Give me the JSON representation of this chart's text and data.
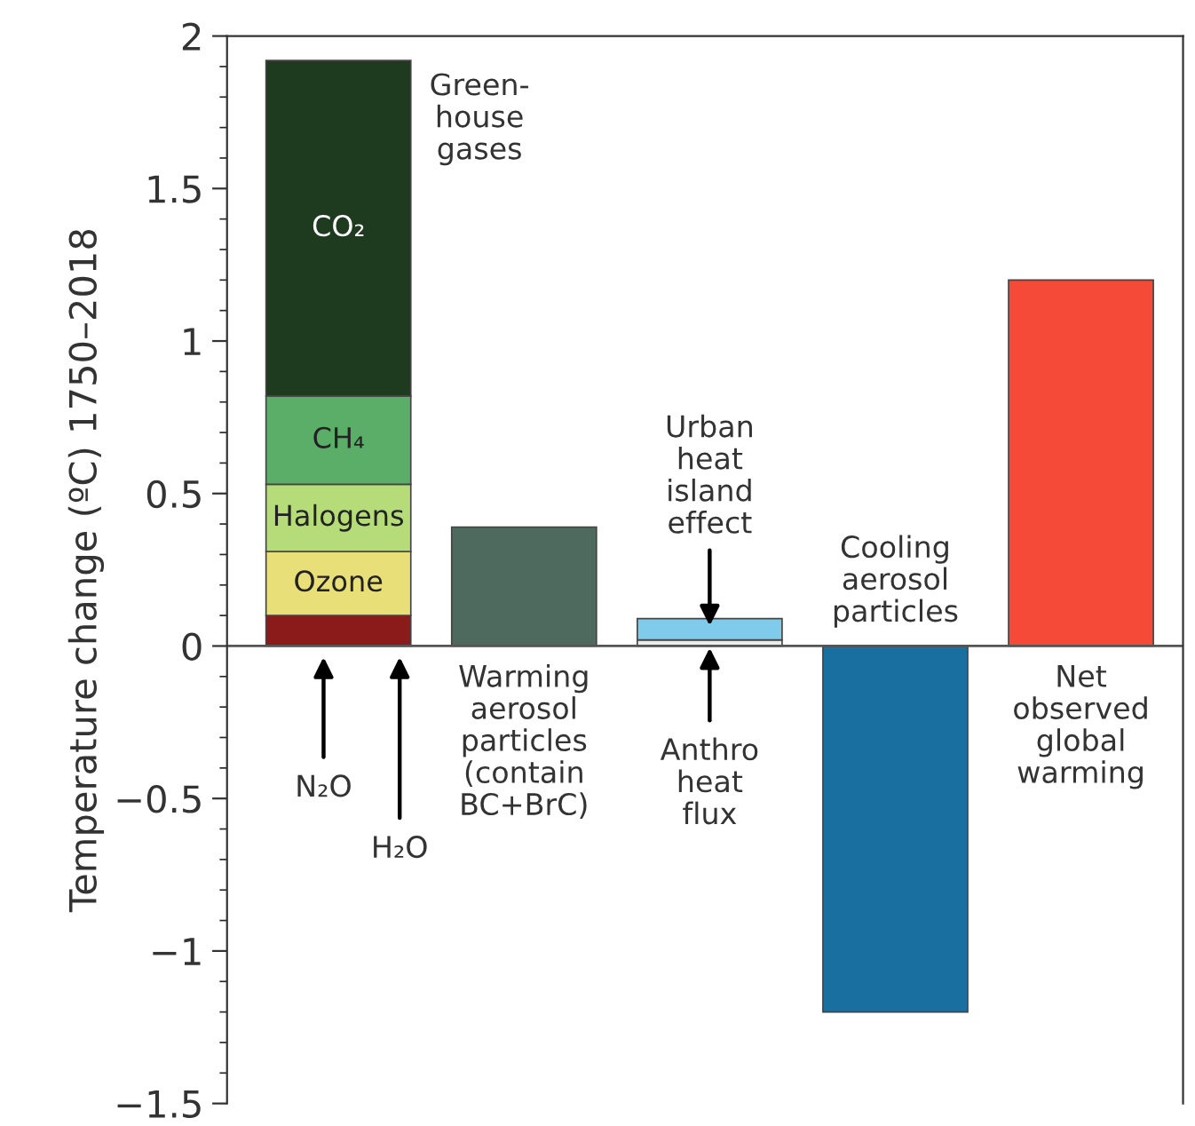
{
  "chart_data": {
    "type": "bar",
    "stacked": true,
    "ylabel": "Temperature change (ºC) 1750–2018",
    "categories": [
      null,
      null,
      null,
      null,
      null
    ],
    "series": [
      {
        "color": "#8b1a1a",
        "values": [
          0.1,
          null,
          null,
          null,
          null
        ]
      },
      {
        "name": "Ozone",
        "color": "#e8df78",
        "values": [
          0.21,
          null,
          null,
          null,
          null
        ]
      },
      {
        "name": "Halogens",
        "color": "#b5dc78",
        "values": [
          0.22,
          null,
          null,
          null,
          null
        ]
      },
      {
        "name": "CH₄",
        "color": "#5aae68",
        "values": [
          0.29,
          null,
          null,
          null,
          null
        ]
      },
      {
        "name": "CO₂",
        "color": "#1e3b1f",
        "values": [
          1.1,
          null,
          null,
          null,
          null
        ]
      },
      {
        "color": "#4e6a5e",
        "values": [
          null,
          0.39,
          null,
          null,
          null
        ]
      },
      {
        "color": "#ececec",
        "values": [
          null,
          null,
          0.02,
          null,
          null
        ]
      },
      {
        "color": "#80cbec",
        "values": [
          null,
          null,
          0.07,
          null,
          null
        ]
      },
      {
        "color": "#1a6fa1",
        "values": [
          null,
          null,
          null,
          -1.2,
          null
        ]
      },
      {
        "color": "#f54a37",
        "values": [
          null,
          null,
          null,
          null,
          1.2
        ]
      }
    ],
    "ylim": [
      -1.5,
      2
    ],
    "yticks": [
      {
        "value": -1.5,
        "label": "−1.5"
      },
      {
        "value": -1,
        "label": "−1"
      },
      {
        "value": -0.5,
        "label": "−0.5"
      },
      0,
      0.5,
      1,
      1.5,
      2
    ],
    "ref_lines": [
      {
        "axis": "y",
        "value": 0,
        "color": "#555555"
      }
    ],
    "tick_labels": "y",
    "grid": false,
    "legend": false,
    "annotations": [
      "Green-\nhouse\ngases",
      "N₂O",
      "H₂O",
      "Warming\naerosol\nparticles\n(contain\nBC+BrC)",
      "Urban\nheat\nisland\neffect",
      "Anthro\nheat\nflux",
      "Cooling\naerosol\nparticles",
      "Net\nobserved\nglobal\nwarming"
    ]
  }
}
